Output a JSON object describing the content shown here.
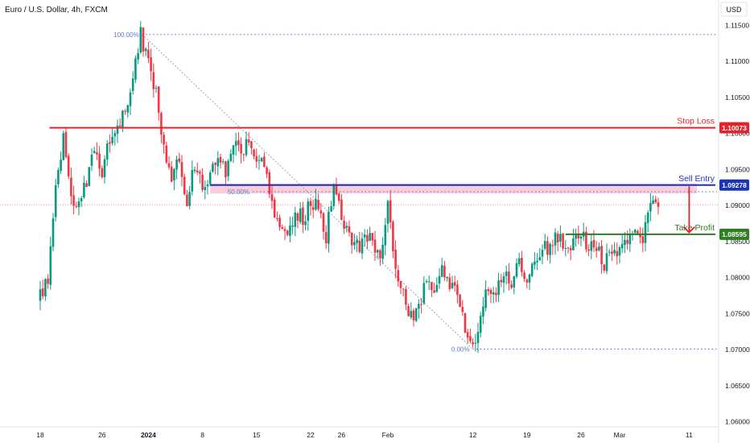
{
  "chart_data": {
    "type": "candlestick",
    "title": "Euro / U.S. Dollar, 4h, FXCM",
    "currency": "USD",
    "y_ticks": [
      "1.11500",
      "1.11000",
      "1.10500",
      "1.10000",
      "1.09500",
      "1.09000",
      "1.08500",
      "1.08000",
      "1.07500",
      "1.07000",
      "1.06500",
      "1.06000"
    ],
    "y_tick_values": [
      1.115,
      1.11,
      1.105,
      1.1,
      1.095,
      1.09,
      1.085,
      1.08,
      1.075,
      1.07,
      1.065,
      1.06
    ],
    "x_ticks": [
      {
        "label": "18",
        "day": 0,
        "bold": false
      },
      {
        "label": "26",
        "day": 8,
        "bold": false
      },
      {
        "label": "2024",
        "day": 14,
        "bold": true
      },
      {
        "label": "8",
        "day": 21,
        "bold": false
      },
      {
        "label": "15",
        "day": 28,
        "bold": false
      },
      {
        "label": "22",
        "day": 35,
        "bold": false
      },
      {
        "label": "26",
        "day": 39,
        "bold": false
      },
      {
        "label": "Feb",
        "day": 45,
        "bold": false
      },
      {
        "label": "12",
        "day": 56,
        "bold": false
      },
      {
        "label": "19",
        "day": 63,
        "bold": false
      },
      {
        "label": "26",
        "day": 70,
        "bold": false
      },
      {
        "label": "Mar",
        "day": 75,
        "bold": false
      },
      {
        "label": "11",
        "day": 84,
        "bold": false
      }
    ],
    "candles_per_day": 3,
    "colors": {
      "up": "#089981",
      "down": "#f23645",
      "background": "#ffffff"
    },
    "path": [
      [
        0,
        1.0775
      ],
      [
        1,
        1.0792
      ],
      [
        2,
        1.0935
      ],
      [
        3,
        1.0993
      ],
      [
        4,
        1.0918
      ],
      [
        5,
        1.0897
      ],
      [
        6,
        1.0932
      ],
      [
        7,
        1.0972
      ],
      [
        8,
        1.0948
      ],
      [
        9,
        1.0995
      ],
      [
        10,
        1.1012
      ],
      [
        11,
        1.1028
      ],
      [
        12,
        1.1075
      ],
      [
        13,
        1.1137
      ],
      [
        14,
        1.1098
      ],
      [
        15,
        1.1052
      ],
      [
        16,
        1.0985
      ],
      [
        17,
        1.094
      ],
      [
        18,
        1.0965
      ],
      [
        19,
        1.0905
      ],
      [
        20,
        1.096
      ],
      [
        21,
        1.0925
      ],
      [
        22,
        1.0945
      ],
      [
        23,
        1.0965
      ],
      [
        24,
        1.0945
      ],
      [
        25,
        1.0982
      ],
      [
        26,
        1.0972
      ],
      [
        27,
        1.099
      ],
      [
        28,
        1.0965
      ],
      [
        29,
        1.095
      ],
      [
        30,
        1.0895
      ],
      [
        31,
        1.0865
      ],
      [
        32,
        1.087
      ],
      [
        33,
        1.089
      ],
      [
        34,
        1.088
      ],
      [
        35,
        1.0903
      ],
      [
        36,
        1.0895
      ],
      [
        37,
        1.0855
      ],
      [
        38,
        1.0928
      ],
      [
        39,
        1.0885
      ],
      [
        40,
        1.0855
      ],
      [
        41,
        1.084
      ],
      [
        42,
        1.086
      ],
      [
        43,
        1.085
      ],
      [
        44,
        1.083
      ],
      [
        45,
        1.0895
      ],
      [
        46,
        1.0815
      ],
      [
        47,
        1.0775
      ],
      [
        48,
        1.0745
      ],
      [
        49,
        1.076
      ],
      [
        50,
        1.08
      ],
      [
        51,
        1.0785
      ],
      [
        52,
        1.0805
      ],
      [
        53,
        1.079
      ],
      [
        54,
        1.077
      ],
      [
        55,
        1.0725
      ],
      [
        56,
        1.07
      ],
      [
        57,
        1.0745
      ],
      [
        58,
        1.079
      ],
      [
        59,
        1.0775
      ],
      [
        60,
        1.0805
      ],
      [
        61,
        1.0795
      ],
      [
        62,
        1.0825
      ],
      [
        63,
        1.079
      ],
      [
        64,
        1.082
      ],
      [
        65,
        1.0835
      ],
      [
        66,
        1.0845
      ],
      [
        67,
        1.0855
      ],
      [
        68,
        1.0845
      ],
      [
        69,
        1.085
      ],
      [
        70,
        1.086
      ],
      [
        71,
        1.0845
      ],
      [
        72,
        1.084
      ],
      [
        73,
        1.0815
      ],
      [
        74,
        1.084
      ],
      [
        75,
        1.083
      ],
      [
        76,
        1.085
      ],
      [
        77,
        1.086
      ],
      [
        78,
        1.085
      ],
      [
        79,
        1.091
      ],
      [
        80,
        1.0905
      ]
    ],
    "fibonacci": [
      {
        "label": "100.00%",
        "price": 1.11368,
        "start_day": 13.2
      },
      {
        "label": "50.00%",
        "price": 1.09185,
        "start_day": 27.5
      },
      {
        "label": "0.00%",
        "price": 1.07002,
        "start_day": 56
      }
    ],
    "levels": [
      {
        "name": "Stop Loss",
        "price": 1.10073,
        "price_label": "1.10073",
        "color": "#e0242e",
        "start_day": 1.2
      },
      {
        "name": "Sell Entry",
        "price": 1.09278,
        "price_label": "1.09278",
        "color": "#1b33b8",
        "start_day": 22
      },
      {
        "name": "Take Profit",
        "price": 1.08595,
        "price_label": "1.08595",
        "color": "#2e7d1f",
        "start_day": 68
      }
    ],
    "current_price": 1.09005,
    "entry_zone": {
      "top": 1.093,
      "bottom": 1.0916,
      "start_day": 22,
      "end_day": 85,
      "color": "#f7c6d6"
    },
    "projection_arrow": {
      "day": 84,
      "from": 1.0926,
      "to": 1.0862,
      "color": "#e0242e"
    },
    "trend_line": {
      "from_day": 13.2,
      "from_price": 1.11368,
      "to_day": 56,
      "to_price": 1.07002
    }
  }
}
